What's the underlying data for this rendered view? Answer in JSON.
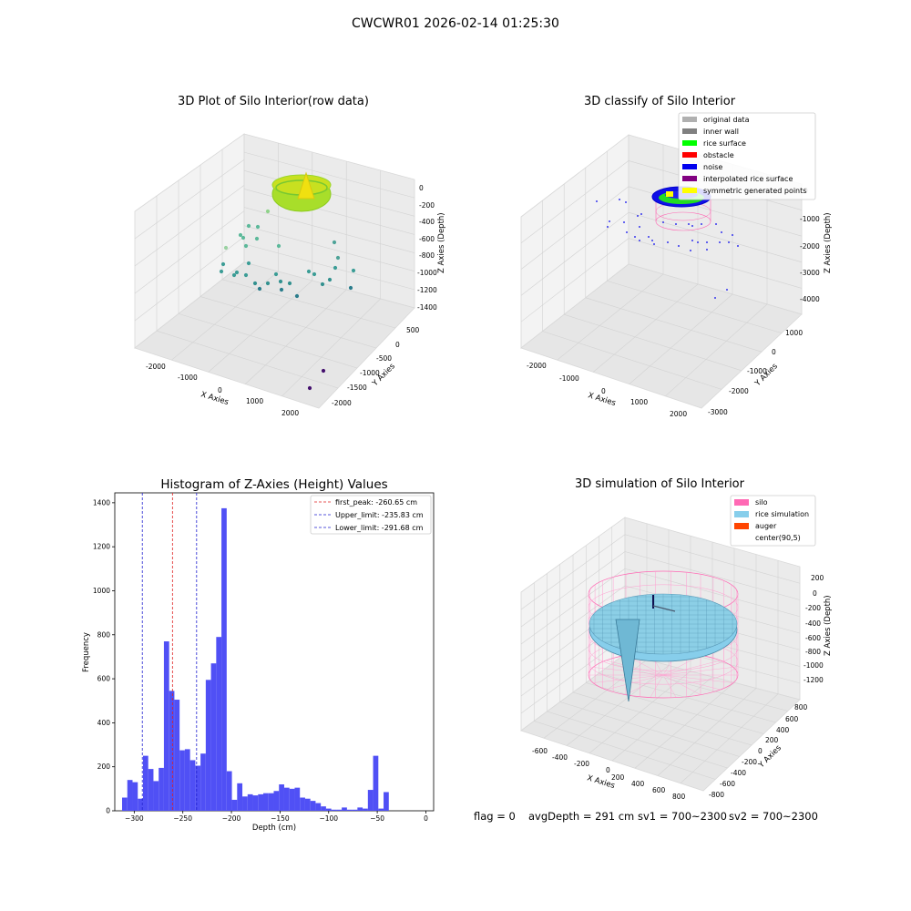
{
  "figure": {
    "title": "CWCWR01 2026-02-14 01:25:30"
  },
  "colors": {
    "pane_light": "#f2f2f2",
    "pane_mid": "#e6e6e6",
    "grid": "#d0d0d0",
    "hist_bar": "#5050f5",
    "first_peak_line": "#e02020",
    "limit_line": "#2020d0",
    "silo": "#ff69b4",
    "rice": "#87ceeb",
    "auger": "#ff4500",
    "noise": "#0000ee"
  },
  "chart_data": [
    {
      "type": "scatter",
      "title": "3D Plot of Silo Interior(row data)",
      "xlabel": "X Axies",
      "ylabel": "Y Axies",
      "zlabel": "Z Axies (Depth)",
      "x_ticks": [
        "-2000",
        "-1000",
        "0",
        "1000",
        "2000"
      ],
      "y_ticks": [
        "500",
        "0",
        "-500",
        "-1000",
        "-1500",
        "-2000"
      ],
      "z_ticks": [
        "0",
        "-200",
        "-400",
        "-600",
        "-800",
        "-1000",
        "-1200",
        "-1400"
      ],
      "colormap": "viridis"
    },
    {
      "type": "scatter",
      "title": "3D classify of Silo Interior",
      "xlabel": "X Axies",
      "ylabel": "Y Axies",
      "zlabel": "Z Axies (Depth)",
      "x_ticks": [
        "-2000",
        "-1000",
        "0",
        "1000",
        "2000"
      ],
      "y_ticks": [
        "1000",
        "0",
        "-1000",
        "-2000",
        "-3000"
      ],
      "z_ticks": [
        "0",
        "-1000",
        "-2000",
        "-3000",
        "-4000"
      ],
      "legend_position": "top-right",
      "legend": [
        {
          "label": "original data",
          "color": "#b0b0b0"
        },
        {
          "label": "inner wall",
          "color": "#808080"
        },
        {
          "label": "rice surface",
          "color": "#00ff00"
        },
        {
          "label": "obstacle",
          "color": "#ff0000"
        },
        {
          "label": "noise",
          "color": "#0000ee"
        },
        {
          "label": "interpolated rice surface",
          "color": "#800080"
        },
        {
          "label": "symmetric generated points",
          "color": "#ffff00"
        }
      ]
    },
    {
      "type": "bar",
      "title": "Histogram of Z-Axies (Height) Values",
      "xlabel": "Depth (cm)",
      "ylabel": "Frequency",
      "xlim": [
        -320,
        8
      ],
      "ylim": [
        0,
        1445
      ],
      "x_ticks": [
        -300,
        -250,
        -200,
        -150,
        -100,
        -50,
        0
      ],
      "y_ticks": [
        0,
        200,
        400,
        600,
        800,
        1000,
        1200,
        1400
      ],
      "bin_start": -312.5,
      "bin_width": 5.38,
      "values": [
        60,
        140,
        130,
        55,
        250,
        190,
        135,
        195,
        770,
        545,
        505,
        275,
        280,
        230,
        205,
        260,
        595,
        670,
        790,
        1375,
        180,
        50,
        125,
        65,
        75,
        70,
        75,
        80,
        80,
        90,
        120,
        105,
        100,
        105,
        60,
        55,
        45,
        35,
        20,
        10,
        5,
        5,
        15,
        5,
        5,
        15,
        10,
        95,
        250,
        10,
        85
      ],
      "lines": [
        {
          "label": "first_peak: -260.65 cm",
          "x": -260.65,
          "color": "#e02020"
        },
        {
          "label": "Upper_limit: -235.83 cm",
          "x": -235.83,
          "color": "#2020d0"
        },
        {
          "label": "Lower_limit: -291.68 cm",
          "x": -291.68,
          "color": "#2020d0"
        }
      ],
      "legend_position": "top-right"
    },
    {
      "type": "scatter",
      "title": "3D simulation of Silo Interior",
      "xlabel": "X Axies",
      "ylabel": "Y Axies",
      "zlabel": "Z Axies (Depth)",
      "x_ticks": [
        "-600",
        "-400",
        "-200",
        "0",
        "200",
        "400",
        "600",
        "800"
      ],
      "y_ticks": [
        "800",
        "600",
        "400",
        "200",
        "0",
        "-200",
        "-400",
        "-600",
        "-800"
      ],
      "z_ticks": [
        "200",
        "0",
        "-200",
        "-400",
        "-600",
        "-800",
        "-1000",
        "-1200"
      ],
      "legend_position": "top-right",
      "legend": [
        {
          "label": "silo",
          "color": "#ff69b4"
        },
        {
          "label": "rice simulation",
          "color": "#87ceeb"
        },
        {
          "label": "auger",
          "color": "#ff4500"
        },
        {
          "label": "center(90,5)",
          "color": "#ffffff"
        }
      ]
    }
  ],
  "status": {
    "flag": "flag = 0",
    "avg_depth": "avgDepth = 291 cm",
    "sv1": "sv1 = 700~2300",
    "sv2": "sv2 = 700~2300"
  }
}
